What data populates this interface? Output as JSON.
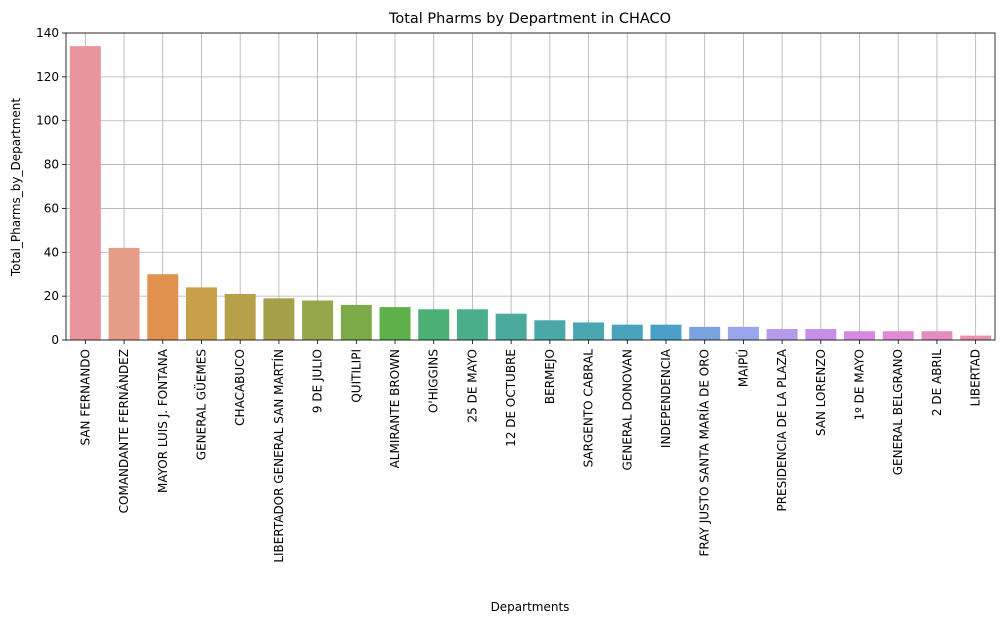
{
  "chart_data": {
    "type": "bar",
    "title": "Total Pharms by Department in CHACO",
    "xlabel": "Departments",
    "ylabel": "Total_Pharms_by_Department",
    "ylim": [
      0,
      140
    ],
    "yticks": [
      0,
      20,
      40,
      60,
      80,
      100,
      120,
      140
    ],
    "grid": true,
    "categories": [
      "SAN FERNANDO",
      "COMANDANTE FERNÁNDEZ",
      "MAYOR LUIS J. FONTANA",
      "GENERAL GÜEMES",
      "CHACABUCO",
      "LIBERTADOR GENERAL SAN MARTÍN",
      "9 DE JULIO",
      "QUITILIPI",
      "ALMIRANTE BROWN",
      "O'HIGGINS",
      "25 DE MAYO",
      "12 DE OCTUBRE",
      "BERMEJO",
      "SARGENTO CABRAL",
      "GENERAL DONOVAN",
      "INDEPENDENCIA",
      "FRAY JUSTO SANTA MARÍA DE ORO",
      "MAIPÚ",
      "PRESIDENCIA DE LA PLAZA",
      "SAN LORENZO",
      "1º DE MAYO",
      "GENERAL BELGRANO",
      "2 DE ABRIL",
      "LIBERTAD"
    ],
    "values": [
      134,
      42,
      30,
      24,
      21,
      19,
      18,
      16,
      15,
      14,
      14,
      12,
      9,
      8,
      7,
      7,
      6,
      6,
      5,
      5,
      4,
      4,
      4,
      2
    ],
    "colors": [
      "#e8949c",
      "#e59c88",
      "#e2914e",
      "#c9a04a",
      "#b8a04a",
      "#a7a04a",
      "#96a64a",
      "#7dab4a",
      "#5db04a",
      "#4ab073",
      "#4aae8a",
      "#4aab9c",
      "#4aa8a6",
      "#4aa6b0",
      "#4aa3bc",
      "#4aa0c8",
      "#7aa4e0",
      "#9aa6ec",
      "#b49ae8",
      "#c78ee6",
      "#d68ae0",
      "#e08ad4",
      "#e48ec0",
      "#e892ac"
    ]
  }
}
